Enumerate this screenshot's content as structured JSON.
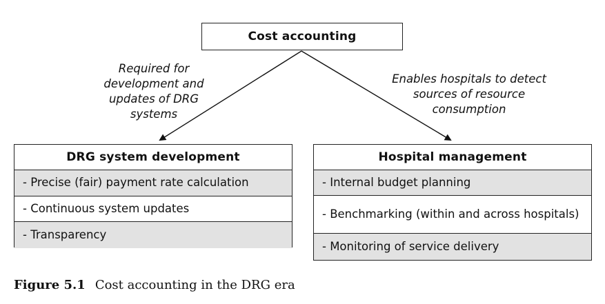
{
  "top_box": {
    "title": "Cost accounting"
  },
  "left_annotation": {
    "lines": [
      "Required for",
      "development and",
      "updates of DRG",
      "systems"
    ]
  },
  "right_annotation": {
    "lines": [
      "Enables hospitals to detect",
      "sources of resource",
      "consumption"
    ]
  },
  "left_box": {
    "title": "DRG system development",
    "items": [
      "- Precise (fair) payment rate calculation",
      "- Continuous system updates",
      "- Transparency"
    ]
  },
  "right_box": {
    "title": "Hospital management",
    "items": [
      "- Internal budget planning",
      "- Benchmarking (within and across hospitals)",
      "- Monitoring of service delivery"
    ]
  },
  "caption": {
    "figure_number": "Figure 5.1",
    "text": "Cost accounting in the DRG era"
  },
  "colors": {
    "shaded_row": "#e2e2e2",
    "border": "#222222"
  }
}
